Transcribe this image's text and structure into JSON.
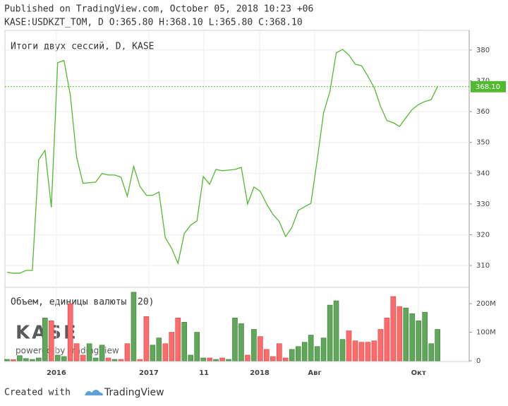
{
  "header": {
    "published": "Published on TradingView.com, October 05, 2018 10:23 +06",
    "ohlc": "KASE:USDKZT_TOM, D O:365.80 H:368.10 L:365.80 C:368.10"
  },
  "chart_data": {
    "type": "line",
    "legend": "Итоги двух сессий, D, KASE",
    "series": [
      {
        "name": "USDKZT_TOM",
        "color": "#53b92f",
        "values": [
          307.8,
          307.5,
          307.5,
          308.4,
          308.4,
          344.4,
          347.4,
          328.9,
          375.9,
          376.6,
          365.3,
          345.1,
          336.7,
          336.9,
          337.1,
          339.9,
          339.4,
          339.4,
          338.7,
          332.5,
          342.2,
          335.7,
          332.8,
          332.8,
          333.9,
          319.0,
          315.6,
          310.7,
          320.4,
          323.1,
          324.5,
          338.9,
          336.4,
          341.2,
          340.8,
          341.0,
          341.2,
          341.9,
          330.0,
          335.5,
          334.1,
          330.0,
          326.6,
          324.3,
          319.4,
          322.4,
          327.9,
          329.1,
          330.2,
          344.4,
          359.6,
          366.5,
          379.1,
          380.2,
          378.4,
          375.4,
          374.9,
          371.5,
          367.8,
          361.7,
          357.1,
          356.4,
          355.2,
          358.0,
          360.7,
          362.3,
          363.3,
          363.9,
          368.1
        ]
      }
    ],
    "last_price": {
      "value": 368.1,
      "label": "368.10"
    },
    "ylim": [
      302.9,
      386.4
    ],
    "yticks": [
      310,
      320,
      330,
      340,
      350,
      360,
      370,
      380
    ],
    "xlim": [
      -0.33,
      73
    ],
    "xticks": [
      {
        "value": 7.8,
        "label": "2016"
      },
      {
        "value": 22.4,
        "label": "2017"
      },
      {
        "value": 31.1,
        "label": "11"
      },
      {
        "value": 39.9,
        "label": "2018"
      },
      {
        "value": 48.6,
        "label": "Авг"
      },
      {
        "value": 65.0,
        "label": "Окт"
      }
    ],
    "volume": {
      "legend": "Объем, единицы валюты (20)",
      "up_color": "#5fa85a",
      "down_color": "#ff6b6b",
      "values": [
        5000000,
        4000000,
        18000000,
        8000000,
        5000000,
        10000000,
        150000000,
        140000000,
        20000000,
        15000000,
        200000000,
        60000000,
        20000000,
        60000000,
        10000000,
        55000000,
        10000000,
        5000000,
        5000000,
        60000000,
        240000000,
        5000000,
        155000000,
        55000000,
        80000000,
        60000000,
        100000000,
        150000000,
        135000000,
        20000000,
        100000000,
        10000000,
        10000000,
        5000000,
        10000000,
        5000000,
        150000000,
        130000000,
        20000000,
        110000000,
        85000000,
        40000000,
        15000000,
        60000000,
        10000000,
        40000000,
        50000000,
        65000000,
        90000000,
        50000000,
        80000000,
        195000000,
        210000000,
        75000000,
        105000000,
        70000000,
        65000000,
        65000000,
        70000000,
        110000000,
        150000000,
        225000000,
        190000000,
        185000000,
        165000000,
        140000000,
        170000000,
        60000000,
        110000000
      ],
      "ylim": [
        0,
        257000000
      ],
      "yticks": [
        0,
        {
          "value": 100000000,
          "label": "100M"
        },
        {
          "value": 200000000,
          "label": "200M"
        }
      ]
    }
  },
  "watermark": {
    "logo": "KASE",
    "powered": "powered by TradingView"
  },
  "footer": {
    "created": "Created with",
    "brand": "TradingView"
  }
}
